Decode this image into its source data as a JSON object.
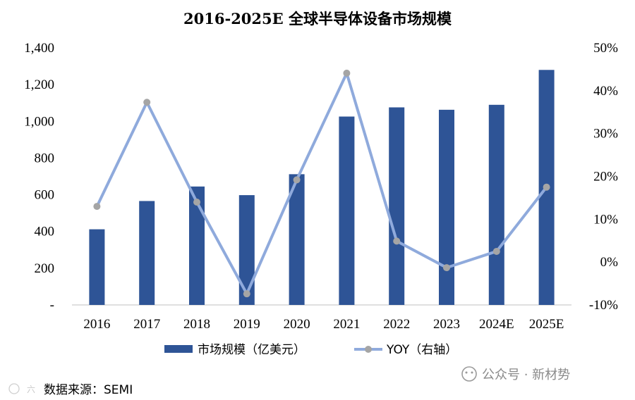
{
  "chart_data": {
    "type": "bar",
    "title": "2016-2025E 全球半导体设备市场规模",
    "categories": [
      "2016",
      "2017",
      "2018",
      "2019",
      "2020",
      "2021",
      "2022",
      "2023",
      "2024E",
      "2025E"
    ],
    "series": [
      {
        "name": "市场规模（亿美元）",
        "type": "bar",
        "axis": "left",
        "values": [
          412,
          566,
          645,
          598,
          712,
          1026,
          1076,
          1063,
          1090,
          1280
        ]
      },
      {
        "name": "YOY（右轴）",
        "type": "line",
        "axis": "right",
        "values": [
          13,
          37.3,
          14,
          -7.4,
          19.2,
          44.1,
          4.9,
          -1.3,
          2.5,
          17.5
        ]
      }
    ],
    "y_left": {
      "range": [
        0,
        1400
      ],
      "ticks": [
        0,
        200,
        400,
        600,
        800,
        1000,
        1200,
        1400
      ],
      "tick_labels": [
        "-",
        "200",
        "400",
        "600",
        "800",
        "1,000",
        "1,200",
        "1,400"
      ]
    },
    "y_right": {
      "range": [
        -10,
        50
      ],
      "ticks": [
        -10,
        0,
        10,
        20,
        30,
        40,
        50
      ],
      "tick_labels": [
        "-10%",
        "0%",
        "10%",
        "20%",
        "30%",
        "40%",
        "50%"
      ]
    },
    "legend": {
      "position": "bottom",
      "bar_label": "市场规模（亿美元）",
      "line_label": "YOY（右轴）"
    }
  },
  "colors": {
    "bar": "#2E5496",
    "line": "#8FAADC",
    "marker": "#A5A5A5",
    "axis": "#BFBFBF"
  },
  "source_note": "数据来源：SEMI",
  "watermark": {
    "text": "公众号 · 新材势",
    "small": "六"
  }
}
